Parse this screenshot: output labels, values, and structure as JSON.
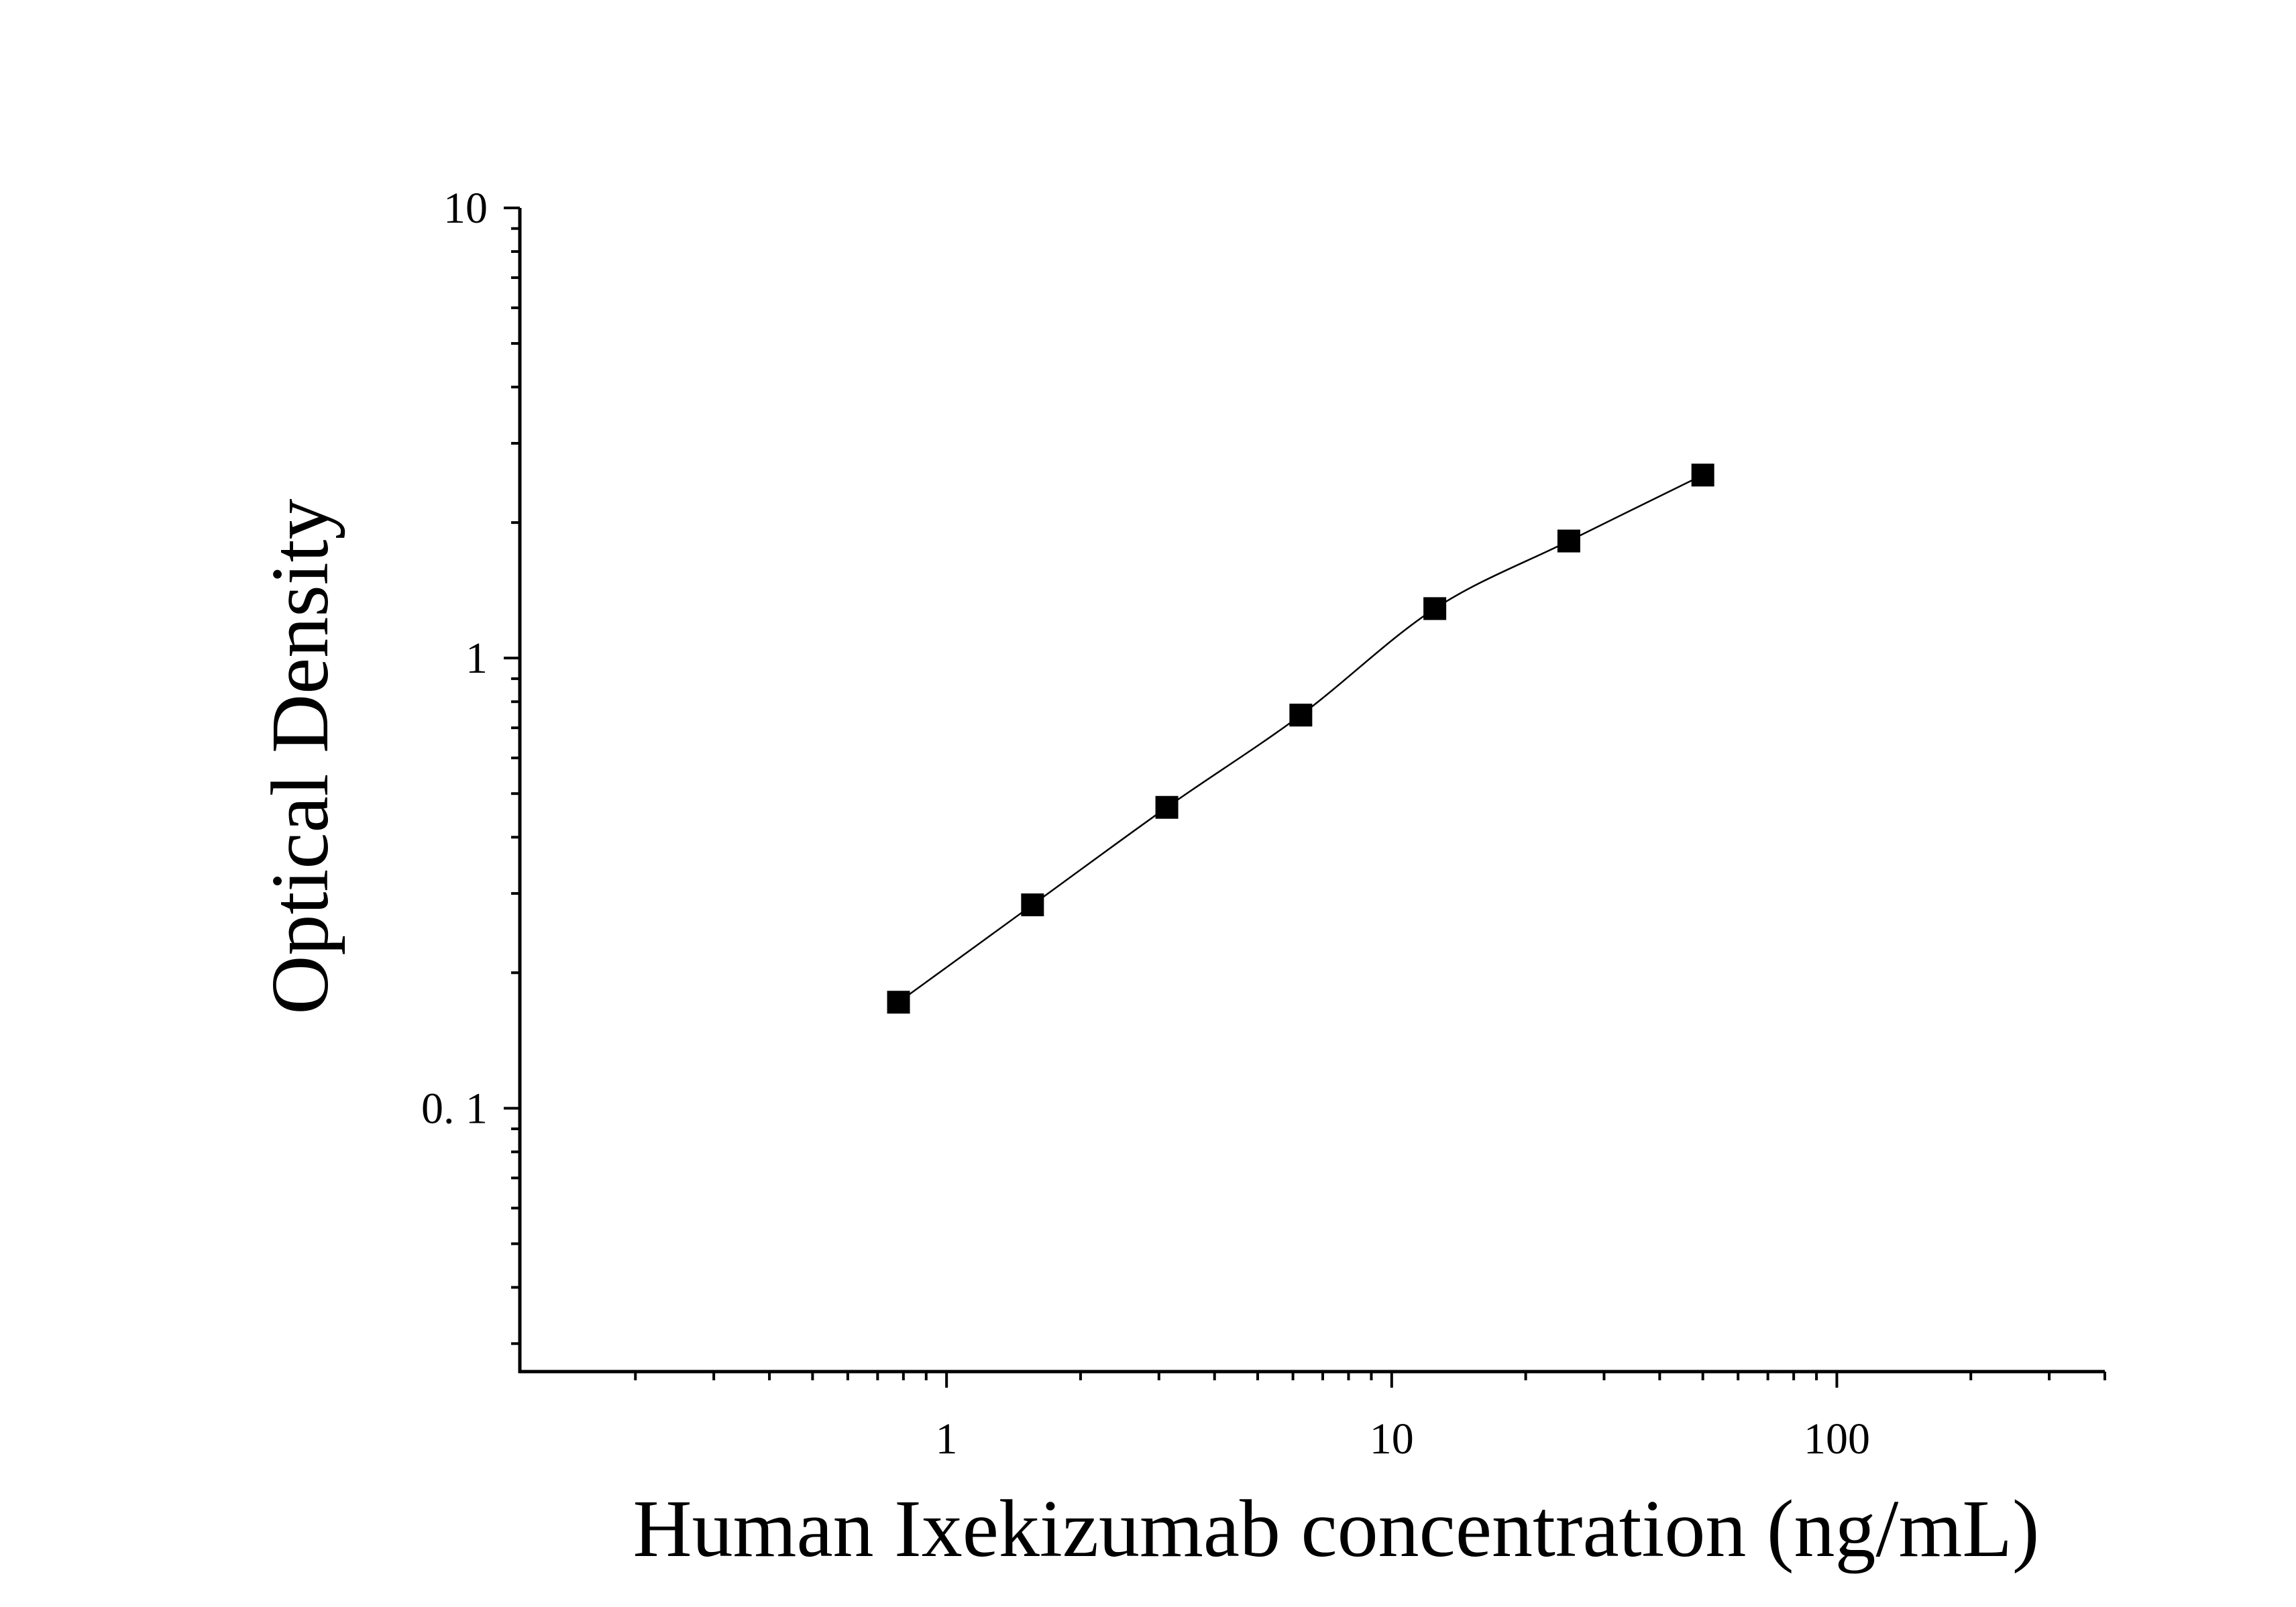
{
  "chart_data": {
    "type": "scatter",
    "title": "",
    "xlabel": "Human Ixekizumab concentration (ng/mL)",
    "ylabel": "Optical Density",
    "x_scale": "log",
    "y_scale": "log",
    "xlim": [
      0.11,
      400
    ],
    "ylim": [
      0.026,
      10
    ],
    "x_ticks": [
      {
        "value": 1,
        "label": "1"
      },
      {
        "value": 10,
        "label": "10"
      },
      {
        "value": 100,
        "label": "100"
      }
    ],
    "y_ticks": [
      {
        "value": 0.1,
        "label": "0. 1"
      },
      {
        "value": 1,
        "label": "1"
      },
      {
        "value": 10,
        "label": "10"
      }
    ],
    "grid": false,
    "legend": "none",
    "colors": {
      "marker": "#000000",
      "line": "#000000",
      "axis": "#000000",
      "background": "#ffffff"
    },
    "series": [
      {
        "marker": "square",
        "fit": "smooth curve",
        "x": [
          0.78,
          1.56,
          3.125,
          6.25,
          12.5,
          25,
          50
        ],
        "y": [
          0.172,
          0.283,
          0.466,
          0.747,
          1.288,
          1.82,
          2.55
        ]
      }
    ]
  }
}
